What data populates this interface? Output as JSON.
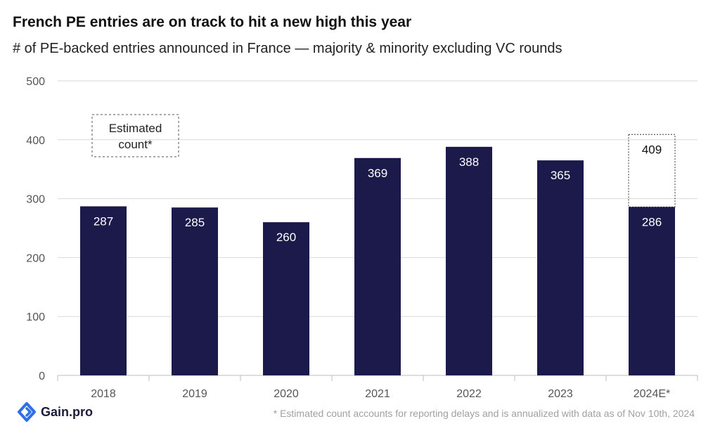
{
  "colors": {
    "bar": "#1b1a4a",
    "grid": "#d9d9d9",
    "axis_text": "#555555",
    "brand": "#2f6fe4"
  },
  "chart_data": {
    "type": "bar",
    "title": "French PE entries are on track to hit a new high this year",
    "subtitle": "# of PE-backed entries announced in France — majority & minority excluding VC rounds",
    "categories": [
      "2018",
      "2019",
      "2020",
      "2021",
      "2022",
      "2023",
      "2024E*"
    ],
    "series": [
      {
        "values": [
          287,
          285,
          260,
          369,
          388,
          365,
          286
        ]
      }
    ],
    "estimate": {
      "category": "2024E*",
      "value": 409
    },
    "annotation": "Estimated count*",
    "ylim": [
      0,
      500
    ],
    "yticks": [
      0,
      100,
      200,
      300,
      400,
      500
    ],
    "grid": true
  },
  "brand": {
    "name": "Gain.pro",
    "icon": "gain-pro-logo-icon"
  },
  "footnote": "* Estimated count accounts for reporting delays and is annualized with data as of Nov 10th, 2024"
}
